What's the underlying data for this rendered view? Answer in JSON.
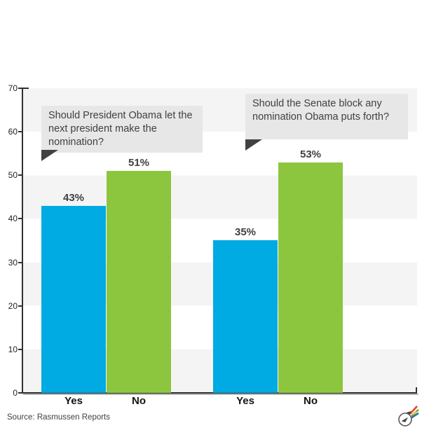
{
  "chart_data": {
    "type": "bar",
    "title": "",
    "groups": [
      {
        "question": "Should President Obama let the next president make the nomination?",
        "categories": [
          "Yes",
          "No"
        ],
        "values": [
          43,
          51
        ],
        "value_labels": [
          "43%",
          "51%"
        ]
      },
      {
        "question": "Should the Senate block any nomination Obama puts forth?",
        "categories": [
          "Yes",
          "No"
        ],
        "values": [
          35,
          53
        ],
        "value_labels": [
          "35%",
          "53%"
        ]
      }
    ],
    "ylim": [
      0,
      70
    ],
    "yticks": [
      0,
      10,
      20,
      30,
      40,
      50,
      60,
      70
    ],
    "series_colors": {
      "Yes": "#00aae2",
      "No": "#8cc63f"
    },
    "gridbands": true,
    "legend": "none",
    "xlabel": "",
    "ylabel": ""
  },
  "colors": {
    "band_gray": "#f4f4f4",
    "bubble_bg": "#e7e7e7",
    "bubble_text": "#404040",
    "tail_dark": "#414042",
    "axis": "#303030",
    "value_label": "#414042",
    "category_label": "#141414",
    "bar_yes": "#00aae2",
    "bar_no": "#8cc63f"
  },
  "footer": {
    "source": "Source: Rasmussen Reports",
    "logo_icon": "dart-logo"
  }
}
